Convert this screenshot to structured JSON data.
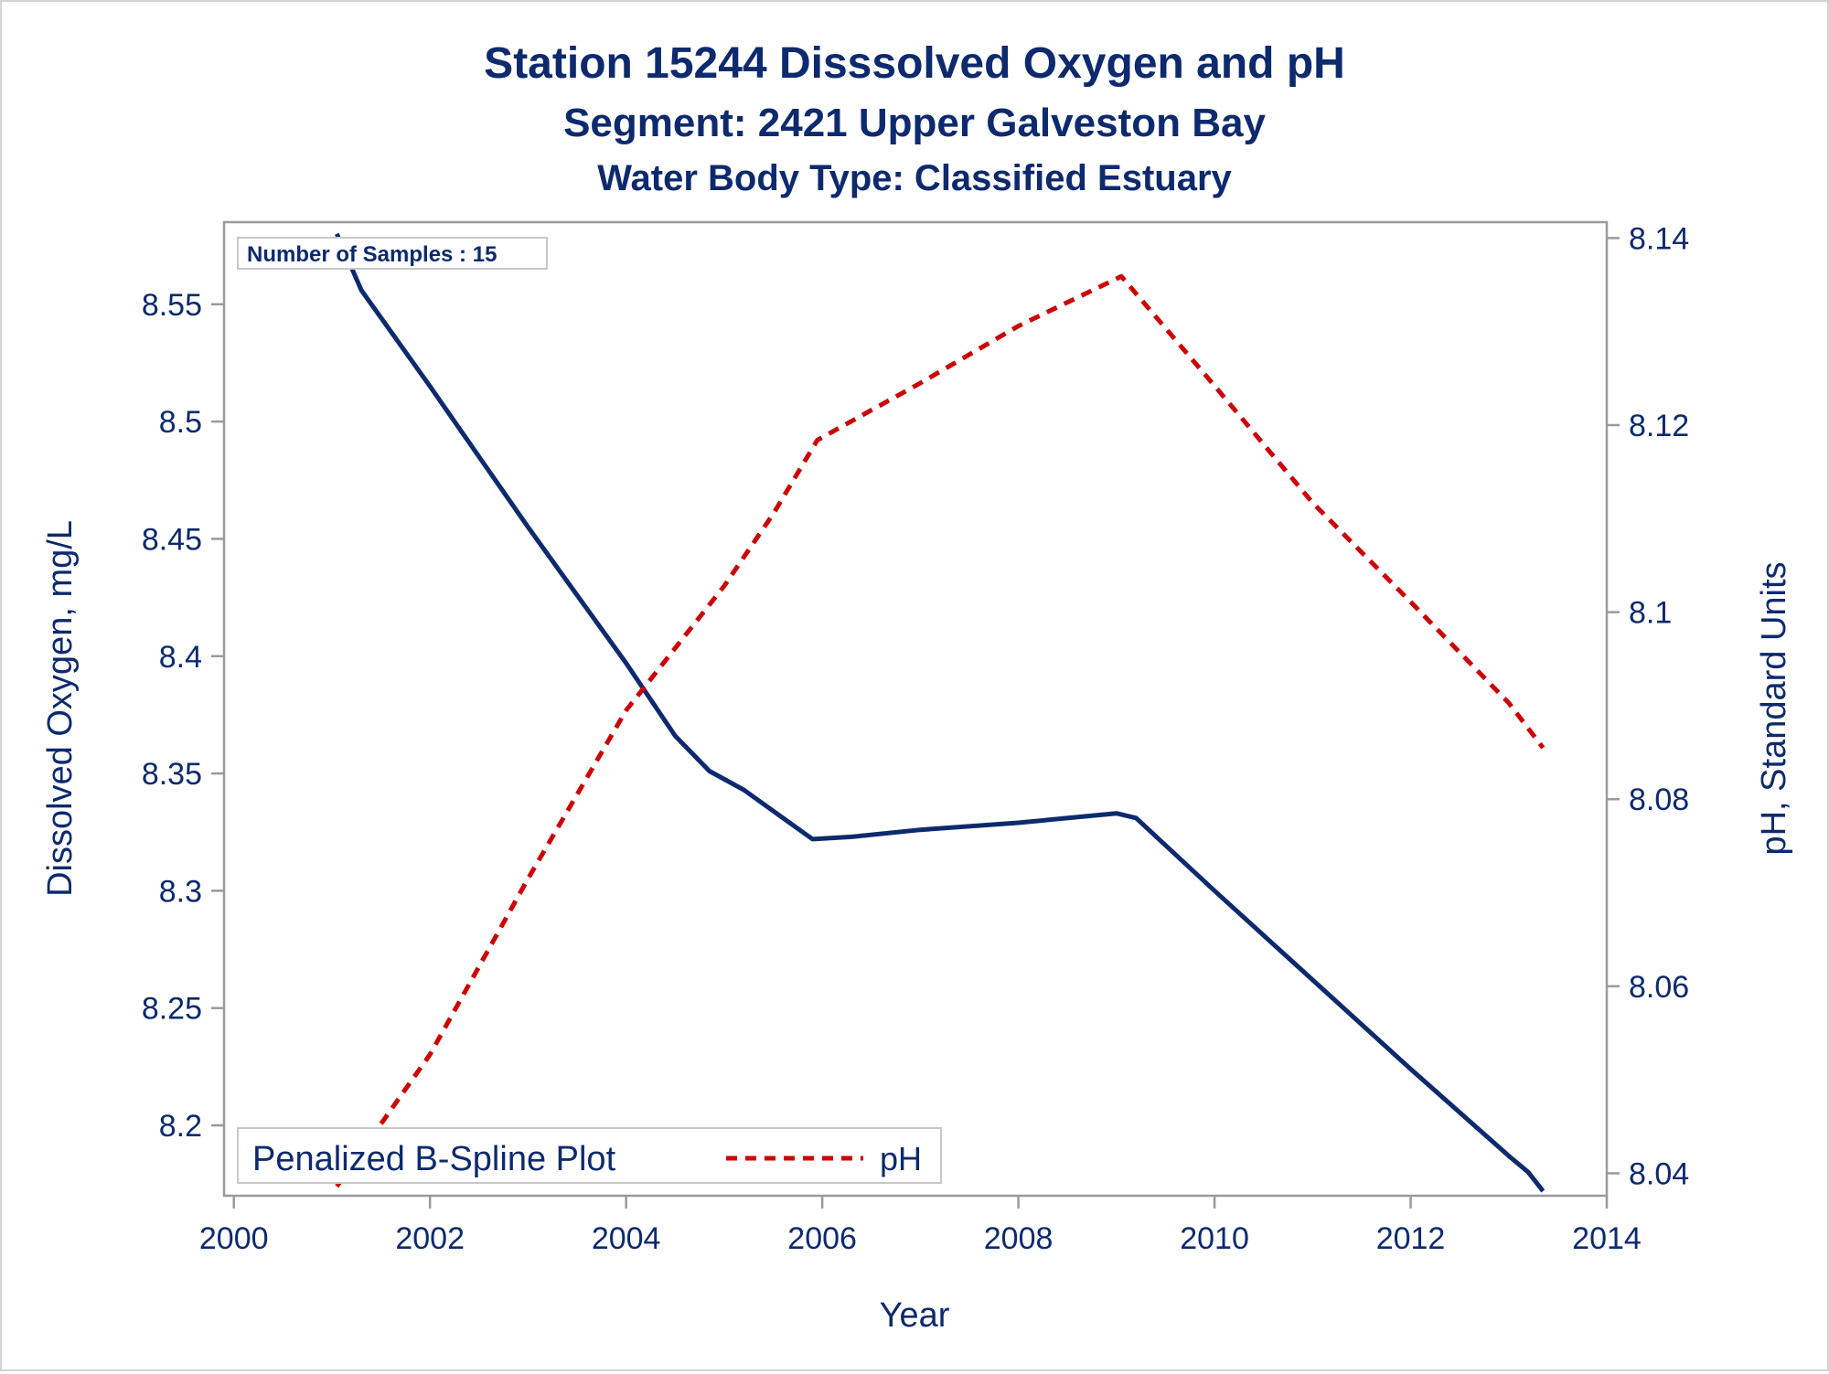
{
  "titles": {
    "line1": "Station 15244   Disssolved Oxygen and pH",
    "line2": "Segment: 2421  Upper Galveston Bay",
    "line3": "Water Body Type: Classified Estuary"
  },
  "inset_note": "Number of Samples : 15",
  "legend": {
    "title": "Penalized B-Spline Plot",
    "entry": "pH"
  },
  "colors": {
    "text": "#0d2a6e",
    "do_line": "#0d2a6e",
    "ph_line": "#cc0000",
    "axis": "#9a9a9a"
  },
  "chart_data": {
    "type": "line",
    "xlabel": "Year",
    "ylabel_left": "Dissolved Oxygen, mg/L",
    "ylabel_right": "pH, Standard Units",
    "xlim": [
      1999.9,
      2014.0
    ],
    "ylim_left": [
      8.17,
      8.585
    ],
    "ylim_right": [
      8.0376,
      8.1417
    ],
    "x_ticks": [
      2000,
      2002,
      2004,
      2006,
      2008,
      2010,
      2012,
      2014
    ],
    "y_left_ticks": [
      "8.2",
      "8.25",
      "8.3",
      "8.35",
      "8.4",
      "8.45",
      "8.5",
      "8.55"
    ],
    "y_right_ticks": [
      "8.04",
      "8.06",
      "8.08",
      "8.1",
      "8.12",
      "8.14"
    ],
    "grid": false,
    "legend_position": "bottom-left",
    "series": [
      {
        "name": "",
        "axis": "left",
        "style": "solid",
        "points": [
          [
            2001.05,
            8.58
          ],
          [
            2001.3,
            8.556
          ],
          [
            2002.0,
            8.515
          ],
          [
            2003.0,
            8.455
          ],
          [
            2004.0,
            8.397
          ],
          [
            2004.5,
            8.366
          ],
          [
            2004.85,
            8.351
          ],
          [
            2005.2,
            8.343
          ],
          [
            2005.6,
            8.331
          ],
          [
            2005.9,
            8.322
          ],
          [
            2006.3,
            8.323
          ],
          [
            2007.0,
            8.326
          ],
          [
            2008.0,
            8.329
          ],
          [
            2009.0,
            8.333
          ],
          [
            2009.2,
            8.331
          ],
          [
            2010.0,
            8.3
          ],
          [
            2011.0,
            8.262
          ],
          [
            2012.0,
            8.224
          ],
          [
            2013.0,
            8.187
          ],
          [
            2013.2,
            8.18
          ],
          [
            2013.35,
            8.172
          ]
        ]
      },
      {
        "name": "pH",
        "axis": "right",
        "style": "dashed",
        "points": [
          [
            2001.05,
            8.0386
          ],
          [
            2002.0,
            8.0527
          ],
          [
            2003.0,
            8.0715
          ],
          [
            2004.0,
            8.0895
          ],
          [
            2005.0,
            8.1028
          ],
          [
            2005.5,
            8.1105
          ],
          [
            2005.95,
            8.1184
          ],
          [
            2007.0,
            8.1245
          ],
          [
            2008.0,
            8.1306
          ],
          [
            2009.05,
            8.1359
          ],
          [
            2010.0,
            8.1242
          ],
          [
            2011.0,
            8.1117
          ],
          [
            2012.0,
            8.1011
          ],
          [
            2013.0,
            8.0903
          ],
          [
            2013.35,
            8.0855
          ]
        ]
      }
    ]
  }
}
